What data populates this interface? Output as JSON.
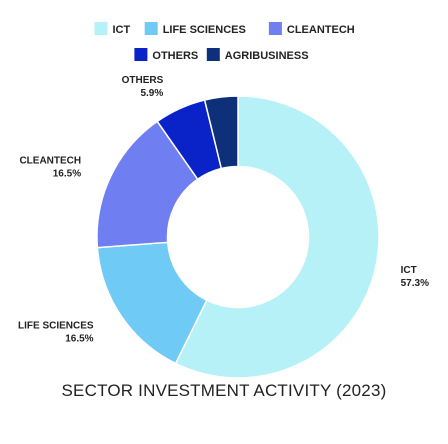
{
  "chart_data": {
    "type": "pie",
    "title": "SECTOR INVESTMENT ACTIVITY (2023)",
    "legend_position": "top",
    "categories": [
      "ICT",
      "LIFE SCIENCES",
      "CLEANTECH",
      "OTHERS",
      "AGRIBUSINESS"
    ],
    "values": [
      57.3,
      16.5,
      16.5,
      5.9,
      3.8
    ],
    "value_labels": [
      "57.3%",
      "16.5%",
      "16.5%",
      "5.9%",
      ""
    ],
    "colors": [
      "#b6f1f7",
      "#6fcaf6",
      "#6f7ef0",
      "#0a23c8",
      "#0e2f7a"
    ],
    "inner_radius_ratio": 0.5
  }
}
